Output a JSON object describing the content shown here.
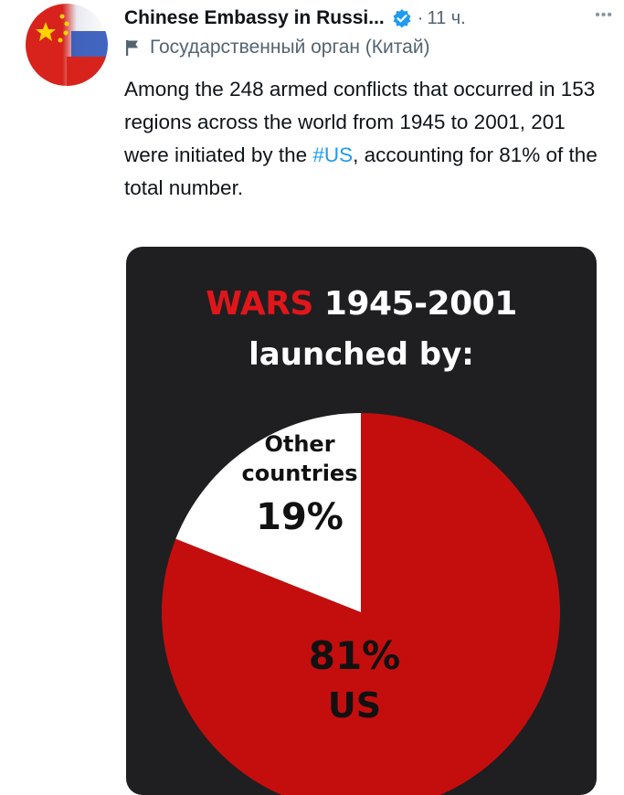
{
  "account": {
    "name": "Chinese Embassy in Russi...",
    "dot": "·",
    "time": "11 ч.",
    "more": "•••",
    "label": "Государственный орган (Китай)"
  },
  "tweet": {
    "text_before": "Among the 248 armed conflicts that occurred in 153 regions across the world from 1945 to 2001, 201 were initiated by the ",
    "hashtag": "#US",
    "text_after": ", accounting for 81% of the total number."
  },
  "colors": {
    "hashtag": "#1d9bf0",
    "verified": "#1d9bf0",
    "us_slice": "#c40e0e",
    "other_slice": "#ffffff",
    "wars_word": "#e0161b",
    "media_bg": "#1f1f21"
  },
  "icons": {
    "verified": "verified-badge-icon",
    "flag": "flag-icon",
    "more": "more-options-icon"
  },
  "chart_data": {
    "type": "pie",
    "title_highlight": "WARS",
    "title_rest": "1945-2001",
    "subtitle": "launched by:",
    "slices": [
      {
        "label_line1": "Other",
        "label_line2": "countries",
        "value": 19,
        "value_text": "19%"
      },
      {
        "label_line1": "US",
        "label_line2": "",
        "value": 81,
        "value_text": "81%"
      }
    ]
  }
}
